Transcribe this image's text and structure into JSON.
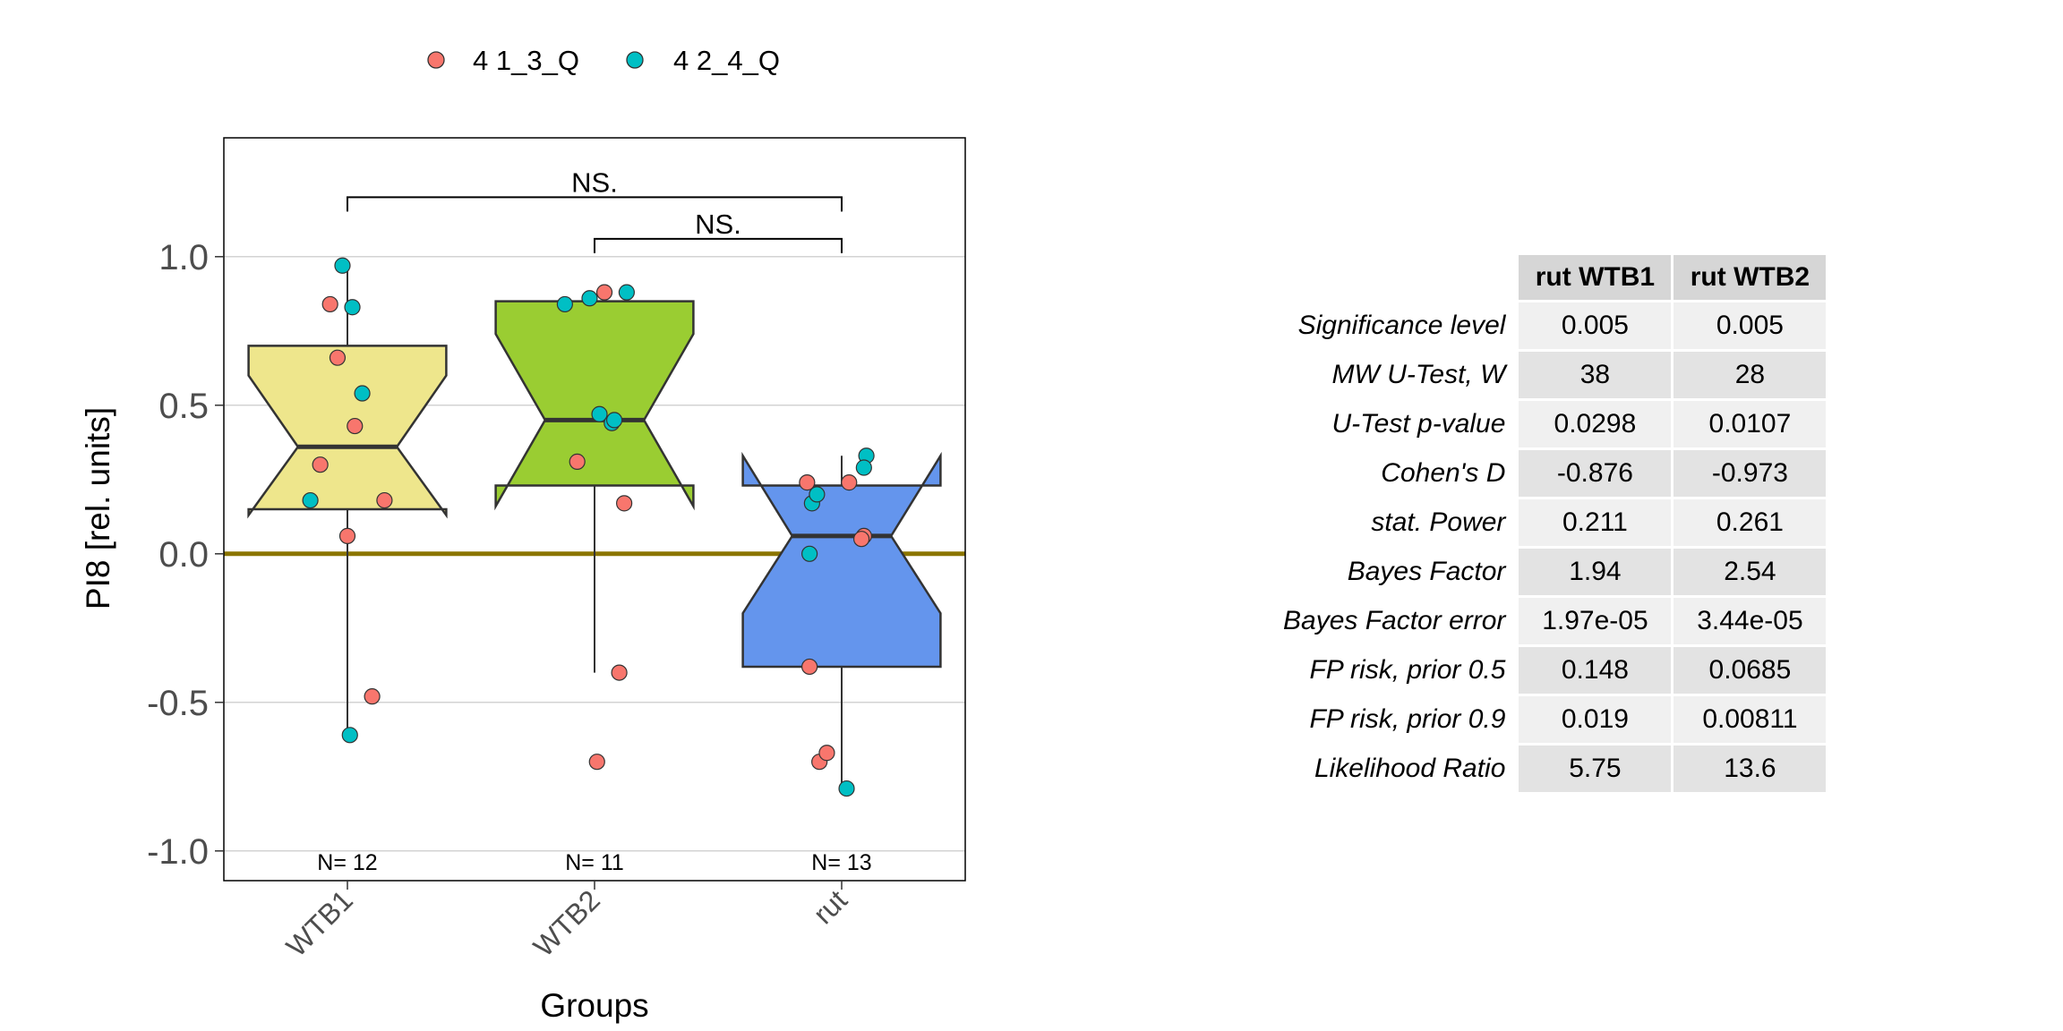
{
  "chart_data": {
    "type": "box",
    "xlabel": "Groups",
    "ylabel": "PI8 [rel. units]",
    "ylim": [
      -1.1,
      1.4
    ],
    "yticks": [
      1.0,
      0.5,
      0.0,
      -0.5,
      -1.0
    ],
    "ytick_labels": [
      "1.0",
      "0.5",
      "0.0",
      "-0.5",
      "-1.0"
    ],
    "grid": true,
    "reference_line": 0.0,
    "legend": {
      "position": "top",
      "entries": [
        {
          "name": "4 1_3_Q",
          "color": "#F8766D"
        },
        {
          "name": "4 2_4_Q",
          "color": "#00BFC4"
        }
      ]
    },
    "categories": [
      "WTB1",
      "WTB2",
      "rut"
    ],
    "boxes": [
      {
        "name": "WTB1",
        "color": "#EEE68C",
        "q1": 0.15,
        "median": 0.36,
        "q3": 0.7,
        "whisker_low": -0.61,
        "whisker_high": 0.97,
        "notch_low": 0.13,
        "notch_high": 0.6,
        "n_label": "N= 12"
      },
      {
        "name": "WTB2",
        "color": "#9ACD32",
        "q1": 0.23,
        "median": 0.45,
        "q3": 0.85,
        "whisker_low": -0.4,
        "whisker_high": 0.85,
        "notch_low": 0.16,
        "notch_high": 0.74,
        "n_label": "N= 11"
      },
      {
        "name": "rut",
        "color": "#6495ED",
        "q1": -0.38,
        "median": 0.06,
        "q3": 0.23,
        "whisker_low": -0.79,
        "whisker_high": 0.33,
        "notch_low": -0.2,
        "notch_high": 0.33,
        "n_label": "N= 13"
      }
    ],
    "points": [
      {
        "group": 0,
        "series": 0,
        "dx": -0.07,
        "y": 0.84
      },
      {
        "group": 0,
        "series": 0,
        "dx": -0.04,
        "y": 0.66
      },
      {
        "group": 0,
        "series": 0,
        "dx": 0.03,
        "y": 0.43
      },
      {
        "group": 0,
        "series": 0,
        "dx": -0.11,
        "y": 0.3
      },
      {
        "group": 0,
        "series": 0,
        "dx": 0.15,
        "y": 0.18
      },
      {
        "group": 0,
        "series": 0,
        "dx": 0.0,
        "y": 0.06
      },
      {
        "group": 0,
        "series": 0,
        "dx": 0.1,
        "y": -0.48
      },
      {
        "group": 0,
        "series": 1,
        "dx": -0.02,
        "y": 0.97
      },
      {
        "group": 0,
        "series": 1,
        "dx": 0.02,
        "y": 0.83
      },
      {
        "group": 0,
        "series": 1,
        "dx": 0.06,
        "y": 0.54
      },
      {
        "group": 0,
        "series": 1,
        "dx": -0.15,
        "y": 0.18
      },
      {
        "group": 0,
        "series": 1,
        "dx": 0.01,
        "y": -0.61
      },
      {
        "group": 1,
        "series": 0,
        "dx": 0.04,
        "y": 0.88
      },
      {
        "group": 1,
        "series": 0,
        "dx": -0.07,
        "y": 0.31
      },
      {
        "group": 1,
        "series": 0,
        "dx": 0.12,
        "y": 0.17
      },
      {
        "group": 1,
        "series": 0,
        "dx": 0.1,
        "y": -0.4
      },
      {
        "group": 1,
        "series": 0,
        "dx": 0.01,
        "y": -0.7
      },
      {
        "group": 1,
        "series": 1,
        "dx": -0.12,
        "y": 0.84
      },
      {
        "group": 1,
        "series": 1,
        "dx": -0.02,
        "y": 0.86
      },
      {
        "group": 1,
        "series": 1,
        "dx": 0.13,
        "y": 0.88
      },
      {
        "group": 1,
        "series": 1,
        "dx": 0.02,
        "y": 0.47
      },
      {
        "group": 1,
        "series": 1,
        "dx": 0.07,
        "y": 0.44
      },
      {
        "group": 1,
        "series": 1,
        "dx": 0.08,
        "y": 0.45
      },
      {
        "group": 2,
        "series": 0,
        "dx": -0.14,
        "y": 0.24
      },
      {
        "group": 2,
        "series": 0,
        "dx": 0.03,
        "y": 0.24
      },
      {
        "group": 2,
        "series": 0,
        "dx": 0.09,
        "y": 0.06
      },
      {
        "group": 2,
        "series": 0,
        "dx": 0.08,
        "y": 0.05
      },
      {
        "group": 2,
        "series": 0,
        "dx": -0.13,
        "y": -0.38
      },
      {
        "group": 2,
        "series": 0,
        "dx": -0.09,
        "y": -0.7
      },
      {
        "group": 2,
        "series": 0,
        "dx": -0.06,
        "y": -0.67
      },
      {
        "group": 2,
        "series": 1,
        "dx": 0.1,
        "y": 0.33
      },
      {
        "group": 2,
        "series": 1,
        "dx": 0.09,
        "y": 0.29
      },
      {
        "group": 2,
        "series": 1,
        "dx": -0.12,
        "y": 0.17
      },
      {
        "group": 2,
        "series": 1,
        "dx": -0.1,
        "y": 0.2
      },
      {
        "group": 2,
        "series": 1,
        "dx": -0.13,
        "y": 0.0
      },
      {
        "group": 2,
        "series": 1,
        "dx": 0.02,
        "y": -0.79
      }
    ],
    "significance": [
      {
        "from": 0,
        "to": 2,
        "label": "NS.",
        "y": 1.2
      },
      {
        "from": 1,
        "to": 2,
        "label": "NS.",
        "y": 1.06
      }
    ]
  },
  "stats_table": {
    "columns": [
      "rut WTB1",
      "rut WTB2"
    ],
    "rows": [
      {
        "label": "Significance level",
        "values": [
          "0.005",
          "0.005"
        ]
      },
      {
        "label": "MW U-Test, W",
        "values": [
          "38",
          "28"
        ]
      },
      {
        "label": "U-Test p-value",
        "values": [
          "0.0298",
          "0.0107"
        ]
      },
      {
        "label": "Cohen's D",
        "values": [
          "-0.876",
          "-0.973"
        ]
      },
      {
        "label": "stat. Power",
        "values": [
          "0.211",
          "0.261"
        ]
      },
      {
        "label": "Bayes Factor",
        "values": [
          "1.94",
          "2.54"
        ]
      },
      {
        "label": "Bayes Factor error",
        "values": [
          "1.97e-05",
          "3.44e-05"
        ]
      },
      {
        "label": "FP risk, prior  0.5",
        "values": [
          "0.148",
          "0.0685"
        ]
      },
      {
        "label": "FP risk, prior  0.9",
        "values": [
          "0.019",
          "0.00811"
        ]
      },
      {
        "label": "Likelihood Ratio",
        "values": [
          "5.75",
          "13.6"
        ]
      }
    ]
  }
}
